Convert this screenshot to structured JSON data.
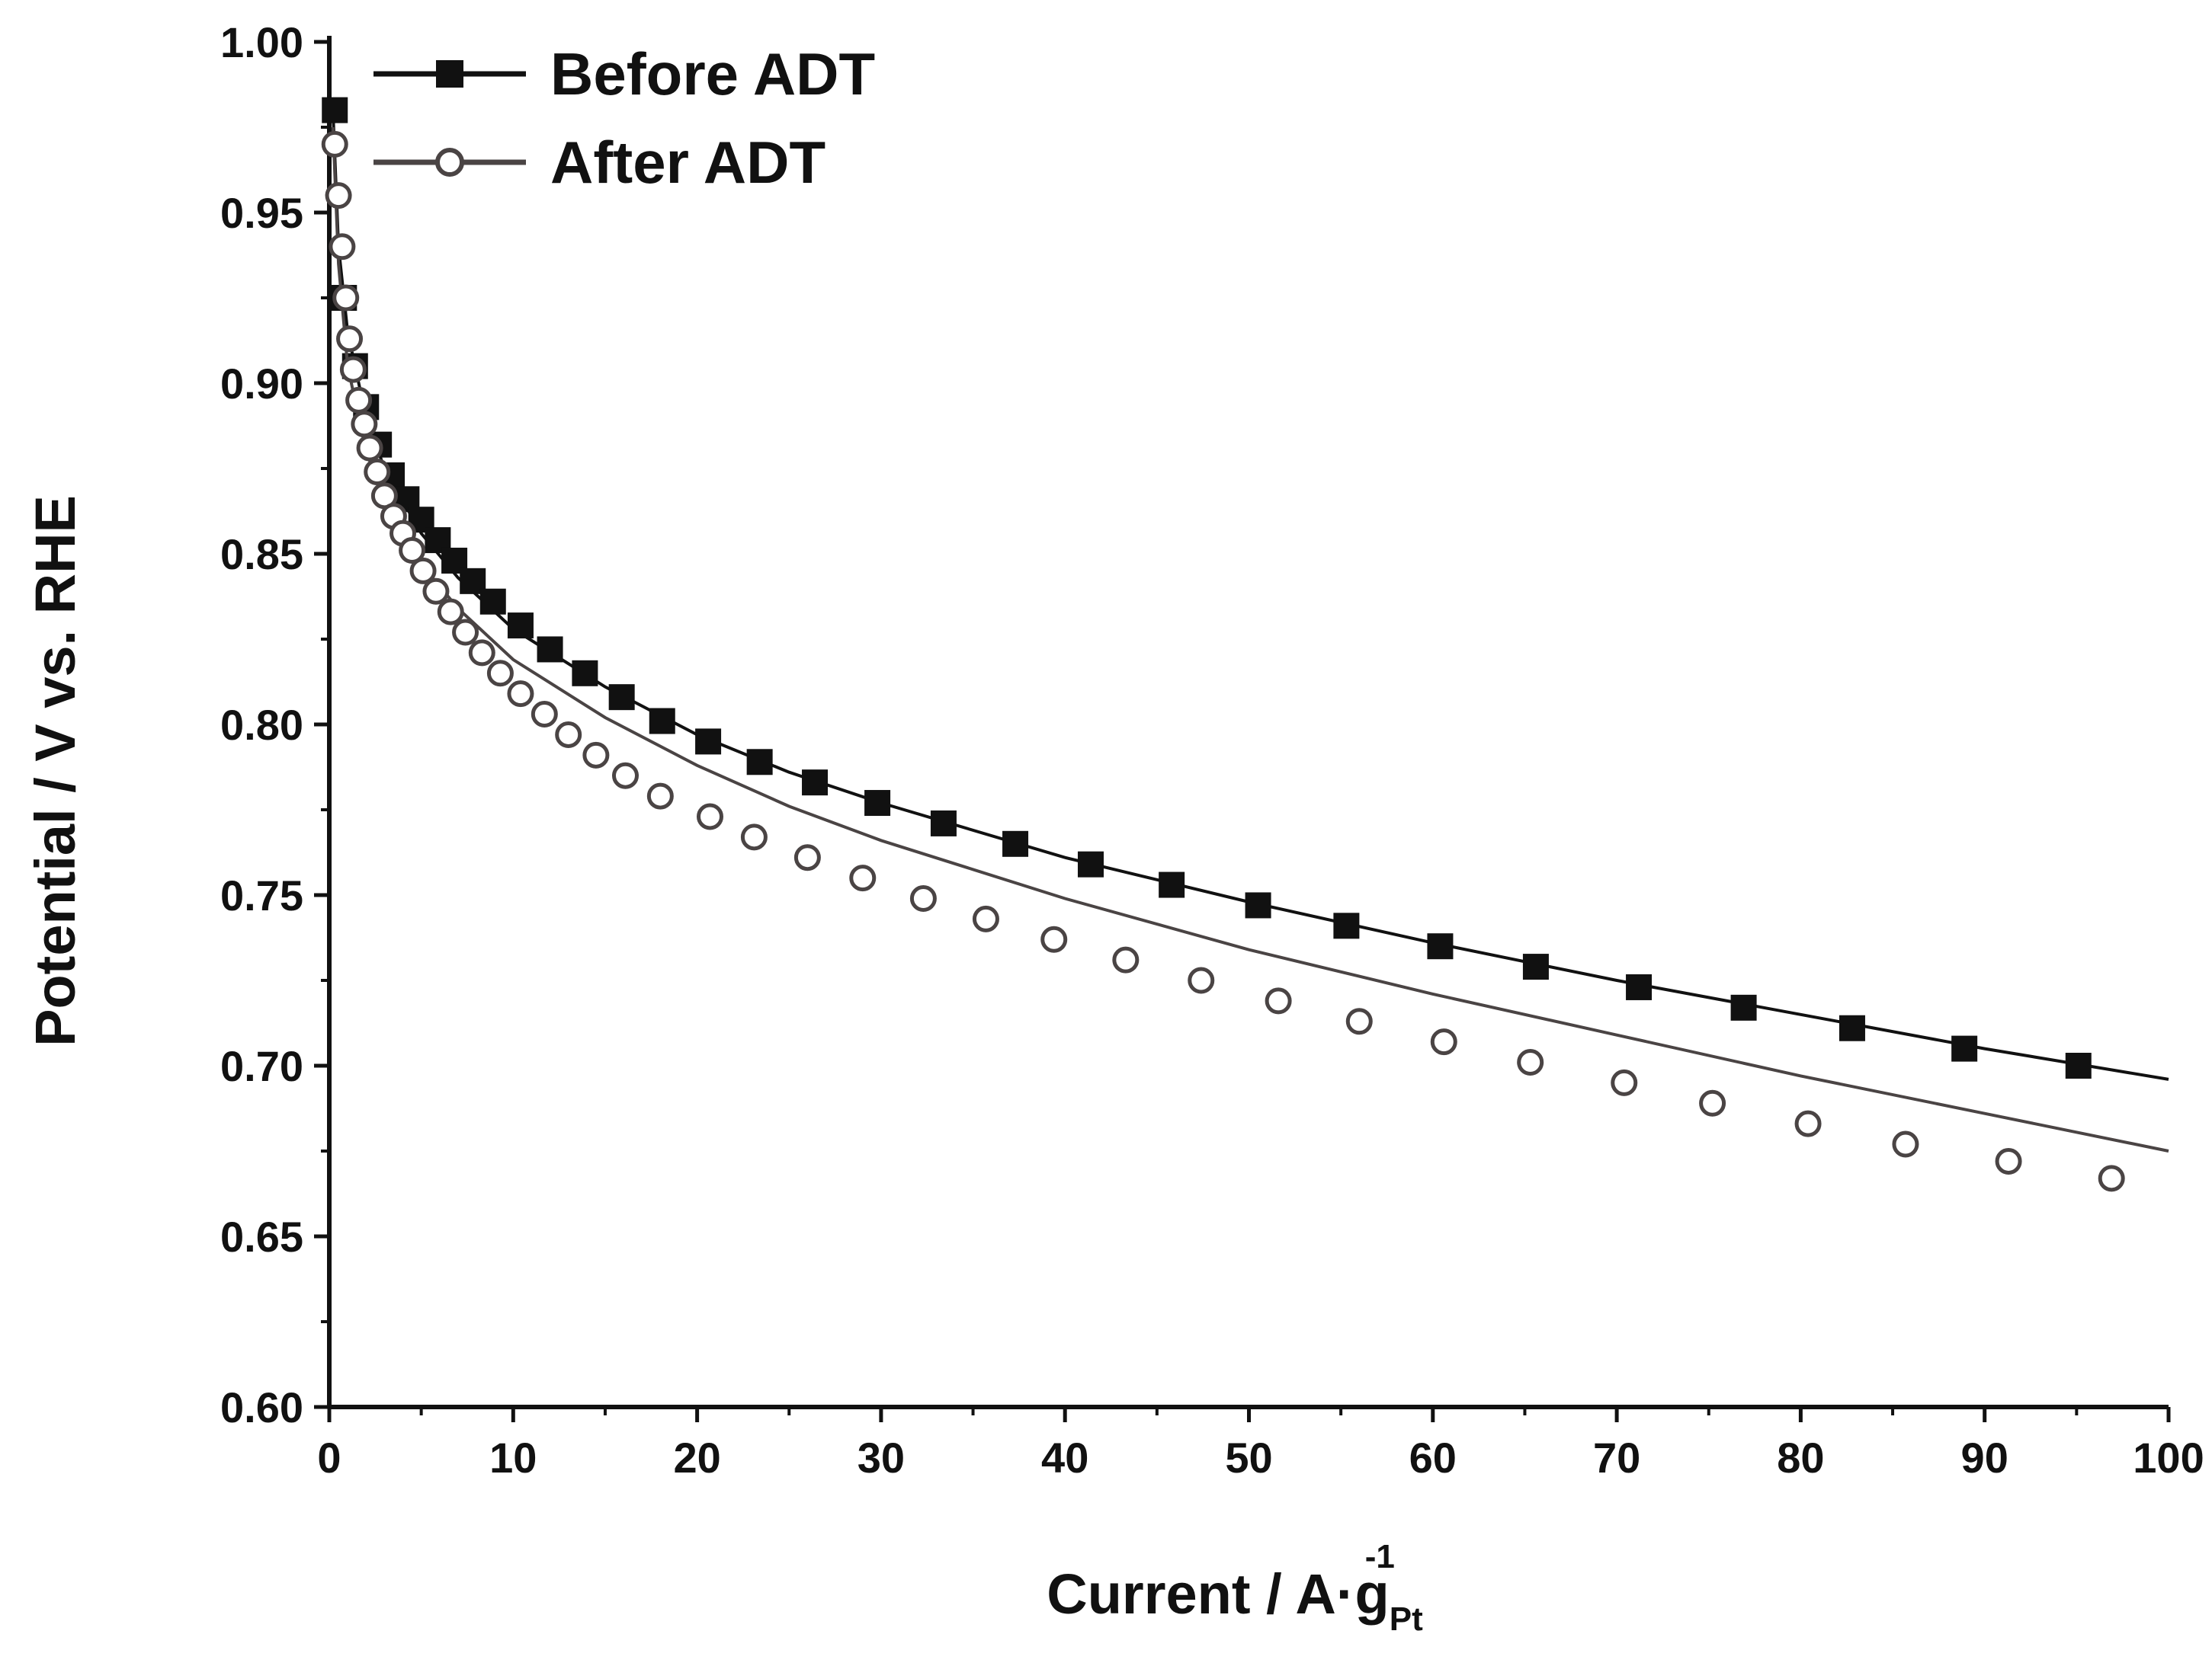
{
  "chart_data": {
    "type": "line",
    "title": "",
    "xlabel": "Current / A·g",
    "xlabel_superscript": "-1",
    "xlabel_subscript": "Pt",
    "ylabel": "Potential / V vs. RHE",
    "xlim": [
      0,
      100
    ],
    "ylim": [
      0.6,
      1.0
    ],
    "xticks": [
      0,
      10,
      20,
      30,
      40,
      50,
      60,
      70,
      80,
      90,
      100
    ],
    "xtick_labels": [
      "0",
      "10",
      "20",
      "30",
      "40",
      "50",
      "60",
      "70",
      "80",
      "90",
      "100"
    ],
    "yticks": [
      0.6,
      0.65,
      0.7,
      0.75,
      0.8,
      0.85,
      0.9,
      0.95,
      1.0
    ],
    "ytick_labels": [
      "0.60",
      "0.65",
      "0.70",
      "0.75",
      "0.80",
      "0.85",
      "0.90",
      "0.95",
      "1.00"
    ],
    "grid": false,
    "legend_position": "top-left",
    "series": [
      {
        "name": "Before ADT",
        "marker": "filled-square",
        "color": "#111111",
        "line": [
          [
            0.2,
            0.98
          ],
          [
            0.5,
            0.94
          ],
          [
            1,
            0.915
          ],
          [
            2,
            0.89
          ],
          [
            3,
            0.875
          ],
          [
            5,
            0.856
          ],
          [
            7,
            0.843
          ],
          [
            10,
            0.828
          ],
          [
            15,
            0.811
          ],
          [
            20,
            0.797
          ],
          [
            25,
            0.786
          ],
          [
            30,
            0.777
          ],
          [
            40,
            0.761
          ],
          [
            50,
            0.748
          ],
          [
            60,
            0.736
          ],
          [
            70,
            0.725
          ],
          [
            80,
            0.715
          ],
          [
            90,
            0.705
          ],
          [
            100,
            0.696
          ]
        ],
        "x": [
          0.3,
          0.8,
          1.4,
          2.0,
          2.7,
          3.4,
          4.2,
          5.0,
          5.9,
          6.8,
          7.8,
          8.9,
          10.4,
          12.0,
          13.9,
          15.9,
          18.1,
          20.6,
          23.4,
          26.4,
          29.8,
          33.4,
          37.3,
          41.4,
          45.8,
          50.5,
          55.3,
          60.4,
          65.6,
          71.2,
          76.9,
          82.8,
          88.9,
          95.1
        ],
        "values": [
          0.98,
          0.925,
          0.905,
          0.893,
          0.882,
          0.873,
          0.866,
          0.86,
          0.854,
          0.848,
          0.842,
          0.836,
          0.829,
          0.822,
          0.815,
          0.808,
          0.801,
          0.795,
          0.789,
          0.783,
          0.777,
          0.771,
          0.765,
          0.759,
          0.753,
          0.747,
          0.741,
          0.735,
          0.729,
          0.723,
          0.717,
          0.711,
          0.705,
          0.7
        ]
      },
      {
        "name": "After ADT",
        "marker": "open-circle",
        "color": "#4a4444",
        "line": [
          [
            0.2,
            0.975
          ],
          [
            0.5,
            0.935
          ],
          [
            1,
            0.905
          ],
          [
            2,
            0.88
          ],
          [
            3,
            0.866
          ],
          [
            5,
            0.847
          ],
          [
            7,
            0.834
          ],
          [
            10,
            0.819
          ],
          [
            15,
            0.802
          ],
          [
            20,
            0.788
          ],
          [
            25,
            0.776
          ],
          [
            30,
            0.766
          ],
          [
            40,
            0.749
          ],
          [
            50,
            0.734
          ],
          [
            60,
            0.721
          ],
          [
            70,
            0.709
          ],
          [
            80,
            0.697
          ],
          [
            90,
            0.686
          ],
          [
            100,
            0.675
          ]
        ],
        "x": [
          0.3,
          0.5,
          0.7,
          0.9,
          1.1,
          1.3,
          1.6,
          1.9,
          2.2,
          2.6,
          3.0,
          3.5,
          4.0,
          4.5,
          5.1,
          5.8,
          6.6,
          7.4,
          8.3,
          9.3,
          10.4,
          11.7,
          13.0,
          14.5,
          16.1,
          18.0,
          20.7,
          23.1,
          26.0,
          29.0,
          32.3,
          35.7,
          39.4,
          43.3,
          47.4,
          51.6,
          56.0,
          60.6,
          65.3,
          70.4,
          75.2,
          80.4,
          85.7,
          91.3,
          96.9
        ],
        "values": [
          0.97,
          0.955,
          0.94,
          0.925,
          0.913,
          0.904,
          0.895,
          0.888,
          0.881,
          0.874,
          0.867,
          0.861,
          0.856,
          0.851,
          0.845,
          0.839,
          0.833,
          0.827,
          0.821,
          0.815,
          0.809,
          0.803,
          0.797,
          0.791,
          0.785,
          0.779,
          0.773,
          0.767,
          0.761,
          0.755,
          0.749,
          0.743,
          0.737,
          0.731,
          0.725,
          0.719,
          0.713,
          0.707,
          0.701,
          0.695,
          0.689,
          0.683,
          0.677,
          0.672,
          0.667
        ]
      }
    ]
  }
}
